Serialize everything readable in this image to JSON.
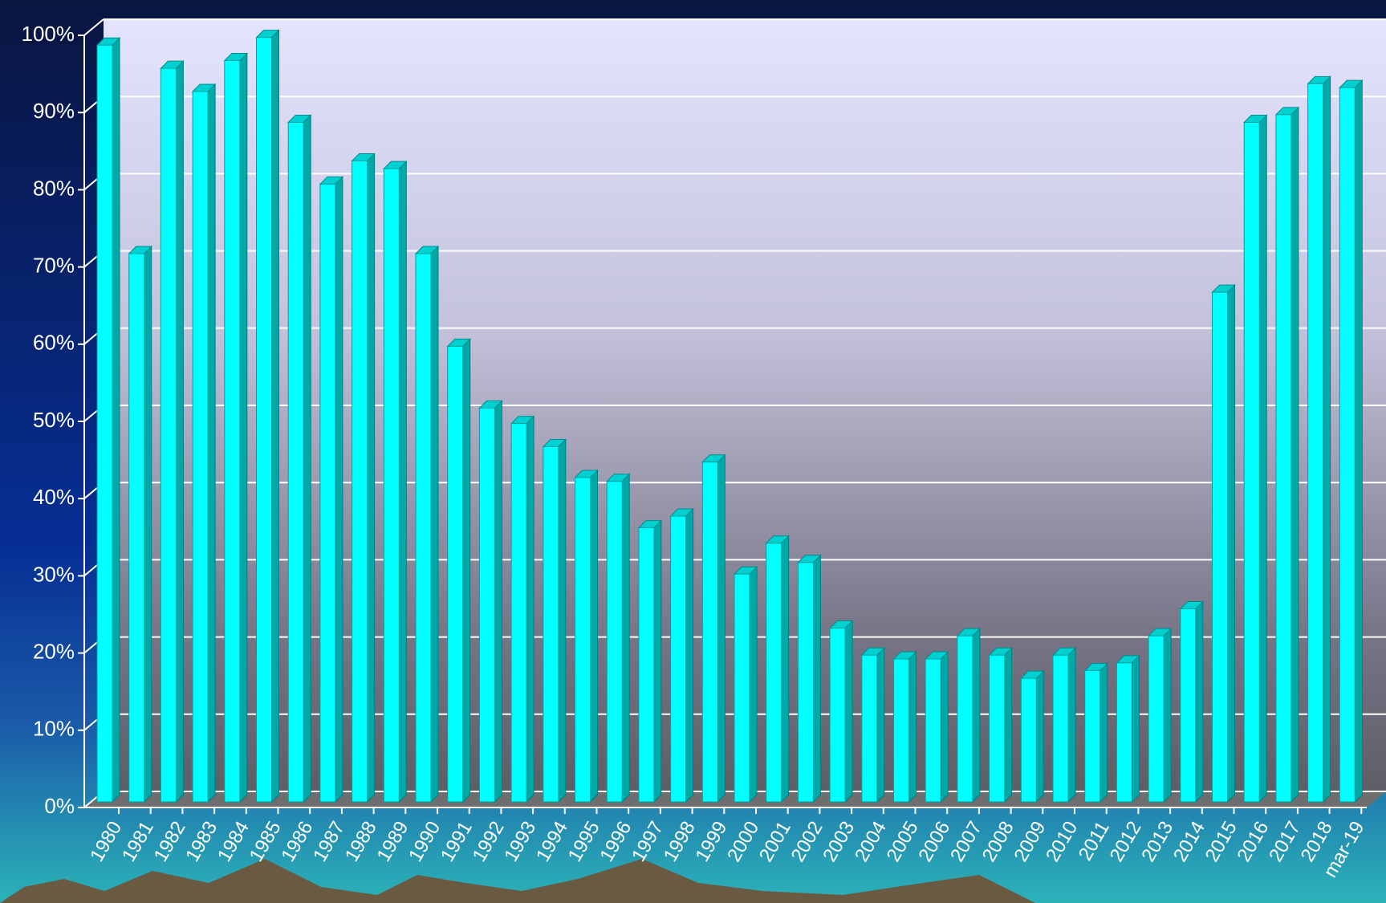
{
  "chart_data": {
    "type": "bar3d",
    "categories": [
      "1980",
      "1981",
      "1982",
      "1983",
      "1984",
      "1985",
      "1986",
      "1987",
      "1988",
      "1989",
      "1990",
      "1991",
      "1992",
      "1993",
      "1994",
      "1995",
      "1996",
      "1997",
      "1998",
      "1999",
      "2000",
      "2001",
      "2002",
      "2003",
      "2004",
      "2005",
      "2006",
      "2007",
      "2008",
      "2009",
      "2010",
      "2011",
      "2012",
      "2013",
      "2014",
      "2015",
      "2016",
      "2017",
      "2018",
      "mar-19"
    ],
    "values": [
      98,
      71,
      95,
      92,
      96,
      99,
      88,
      80,
      83,
      82,
      71,
      59,
      51,
      49,
      46,
      42,
      41.5,
      35.5,
      37,
      44,
      29.5,
      33.5,
      31,
      22.5,
      19,
      18.5,
      18.5,
      21.5,
      19,
      16,
      19,
      17,
      18,
      21.5,
      25,
      66,
      88,
      89,
      93,
      92.5
    ],
    "color": "#00ffff",
    "ylim": [
      0,
      100
    ],
    "yticks": [
      {
        "value": 0,
        "label": "0%"
      },
      {
        "value": 10,
        "label": "10%"
      },
      {
        "value": 20,
        "label": "20%"
      },
      {
        "value": 30,
        "label": "30%"
      },
      {
        "value": 40,
        "label": "40%"
      },
      {
        "value": 50,
        "label": "50%"
      },
      {
        "value": 60,
        "label": "60%"
      },
      {
        "value": 70,
        "label": "70%"
      },
      {
        "value": 80,
        "label": "80%"
      },
      {
        "value": 90,
        "label": "90%"
      },
      {
        "value": 100,
        "label": "100%"
      }
    ],
    "grid": true
  }
}
